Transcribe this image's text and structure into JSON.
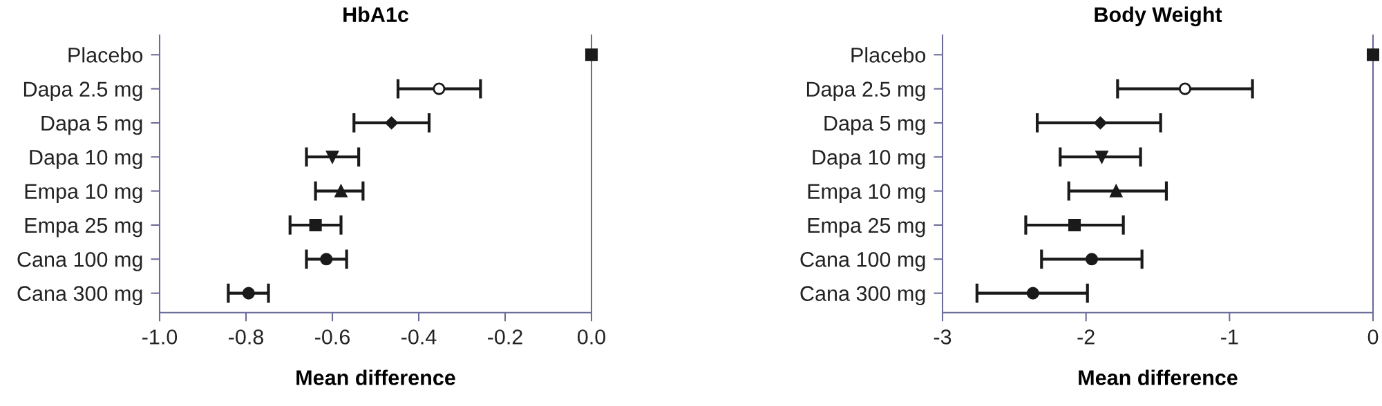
{
  "chart_data": [
    {
      "type": "scatter",
      "title": "HbA1c",
      "xlabel": "Mean difference",
      "orientation": "horizontal",
      "grid": false,
      "categories": [
        "Placebo",
        "Dapa 2.5 mg",
        "Dapa 5 mg",
        "Dapa 10 mg",
        "Empa 10 mg",
        "Empa 25 mg",
        "Cana 100 mg",
        "Cana 300 mg"
      ],
      "xlim": [
        -1.0,
        0.0
      ],
      "xticks": [
        {
          "value": -1.0,
          "label": "-1.0"
        },
        {
          "value": -0.8,
          "label": "-0.8"
        },
        {
          "value": -0.6,
          "label": "-0.6"
        },
        {
          "value": -0.4,
          "label": "-0.4"
        },
        {
          "value": -0.2,
          "label": "-0.2"
        },
        {
          "value": 0.0,
          "label": "0.0"
        }
      ],
      "series": [
        {
          "marker": "square",
          "color": "#1a1a1a",
          "values": [
            0,
            null,
            null,
            null,
            null,
            null,
            null,
            null
          ],
          "errors": [
            null,
            null,
            null,
            null,
            null,
            null,
            null,
            null
          ]
        },
        {
          "marker": "circle",
          "color": "#ffffff",
          "values": [
            null,
            -0.353,
            null,
            null,
            null,
            null,
            null,
            null
          ],
          "errors": [
            null,
            [
              -0.448,
              -0.257
            ],
            null,
            null,
            null,
            null,
            null,
            null
          ]
        },
        {
          "marker": "diamond",
          "color": "#1a1a1a",
          "values": [
            null,
            null,
            -0.463,
            null,
            null,
            null,
            null,
            null
          ],
          "errors": [
            null,
            null,
            [
              -0.55,
              -0.376
            ],
            null,
            null,
            null,
            null,
            null
          ]
        },
        {
          "marker": "triangle-down",
          "color": "#1a1a1a",
          "values": [
            null,
            null,
            null,
            -0.6,
            null,
            null,
            null,
            null
          ],
          "errors": [
            null,
            null,
            null,
            [
              -0.66,
              -0.539
            ],
            null,
            null,
            null,
            null
          ]
        },
        {
          "marker": "triangle",
          "color": "#1a1a1a",
          "values": [
            null,
            null,
            null,
            null,
            -0.58,
            null,
            null,
            null
          ],
          "errors": [
            null,
            null,
            null,
            null,
            [
              -0.639,
              -0.529
            ],
            null,
            null,
            null
          ]
        },
        {
          "marker": "square",
          "color": "#1a1a1a",
          "values": [
            null,
            null,
            null,
            null,
            null,
            -0.639,
            null,
            null
          ],
          "errors": [
            null,
            null,
            null,
            null,
            null,
            [
              -0.698,
              -0.58
            ],
            null,
            null
          ]
        },
        {
          "marker": "circle",
          "color": "#1a1a1a",
          "values": [
            null,
            null,
            null,
            null,
            null,
            null,
            -0.614,
            null
          ],
          "errors": [
            null,
            null,
            null,
            null,
            null,
            null,
            [
              -0.66,
              -0.567
            ],
            null
          ]
        },
        {
          "marker": "circle",
          "color": "#1a1a1a",
          "values": [
            null,
            null,
            null,
            null,
            null,
            null,
            null,
            -0.794
          ],
          "errors": [
            null,
            null,
            null,
            null,
            null,
            null,
            null,
            [
              -0.841,
              -0.748
            ]
          ]
        }
      ]
    },
    {
      "type": "scatter",
      "title": "Body Weight",
      "xlabel": "Mean difference",
      "orientation": "horizontal",
      "grid": false,
      "categories": [
        "Placebo",
        "Dapa 2.5 mg",
        "Dapa 5 mg",
        "Dapa 10 mg",
        "Empa 10 mg",
        "Empa 25 mg",
        "Cana 100 mg",
        "Cana 300 mg"
      ],
      "xlim": [
        -3,
        0
      ],
      "xticks": [
        -3,
        -2,
        -1,
        0
      ],
      "series": [
        {
          "marker": "square",
          "color": "#1a1a1a",
          "values": [
            0,
            null,
            null,
            null,
            null,
            null,
            null,
            null
          ],
          "errors": [
            null,
            null,
            null,
            null,
            null,
            null,
            null,
            null
          ]
        },
        {
          "marker": "circle",
          "color": "#ffffff",
          "values": [
            null,
            -1.31,
            null,
            null,
            null,
            null,
            null,
            null
          ],
          "errors": [
            null,
            [
              -1.78,
              -0.84
            ],
            null,
            null,
            null,
            null,
            null,
            null
          ]
        },
        {
          "marker": "diamond",
          "color": "#1a1a1a",
          "values": [
            null,
            null,
            -1.9,
            null,
            null,
            null,
            null,
            null
          ],
          "errors": [
            null,
            null,
            [
              -2.34,
              -1.48
            ],
            null,
            null,
            null,
            null,
            null
          ]
        },
        {
          "marker": "triangle-down",
          "color": "#1a1a1a",
          "values": [
            null,
            null,
            null,
            -1.89,
            null,
            null,
            null,
            null
          ],
          "errors": [
            null,
            null,
            null,
            [
              -2.18,
              -1.62
            ],
            null,
            null,
            null,
            null
          ]
        },
        {
          "marker": "triangle",
          "color": "#1a1a1a",
          "values": [
            null,
            null,
            null,
            null,
            -1.79,
            null,
            null,
            null
          ],
          "errors": [
            null,
            null,
            null,
            null,
            [
              -2.12,
              -1.44
            ],
            null,
            null,
            null
          ]
        },
        {
          "marker": "square",
          "color": "#1a1a1a",
          "values": [
            null,
            null,
            null,
            null,
            null,
            -2.08,
            null,
            null
          ],
          "errors": [
            null,
            null,
            null,
            null,
            null,
            [
              -2.42,
              -1.74
            ],
            null,
            null
          ]
        },
        {
          "marker": "circle",
          "color": "#1a1a1a",
          "values": [
            null,
            null,
            null,
            null,
            null,
            null,
            -1.96,
            null
          ],
          "errors": [
            null,
            null,
            null,
            null,
            null,
            null,
            [
              -2.31,
              -1.61
            ],
            null
          ]
        },
        {
          "marker": "circle",
          "color": "#1a1a1a",
          "values": [
            null,
            null,
            null,
            null,
            null,
            null,
            null,
            -2.37
          ],
          "errors": [
            null,
            null,
            null,
            null,
            null,
            null,
            null,
            [
              -2.76,
              -1.99
            ]
          ]
        }
      ]
    }
  ]
}
